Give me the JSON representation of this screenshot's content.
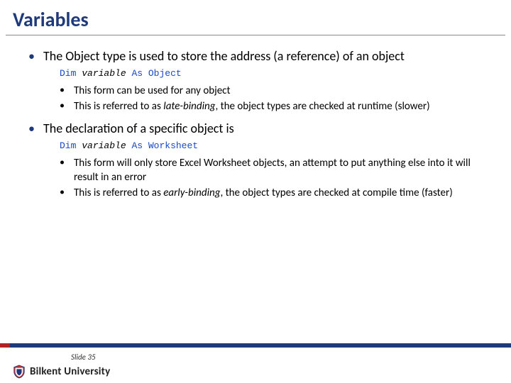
{
  "title": "Variables",
  "bullets": [
    {
      "text": "The Object type is used to store the address (a reference) of an object",
      "code": {
        "kw1": "Dim",
        "var": "variable",
        "kw2": "As",
        "type": "Object"
      },
      "sub": [
        "This form can be used for any object",
        "This is referred to as |late-binding|, the object types are checked at runtime (slower)"
      ]
    },
    {
      "text": "The declaration of a specific object is",
      "code": {
        "kw1": "Dim",
        "var": "variable",
        "kw2": "As",
        "type": "Worksheet"
      },
      "sub": [
        "This form will only store Excel Worksheet objects, an attempt to put anything else into it will result in an error",
        "This is referred to as |early-binding|, the object types are checked at compile time (faster)"
      ]
    }
  ],
  "slide_label": "Slide 35",
  "university": "Bilkent University",
  "colors": {
    "title": "#1f3a7a",
    "code_kw": "#1a48c8",
    "bar_red": "#b22222",
    "bar_blue": "#1f3a7a"
  }
}
